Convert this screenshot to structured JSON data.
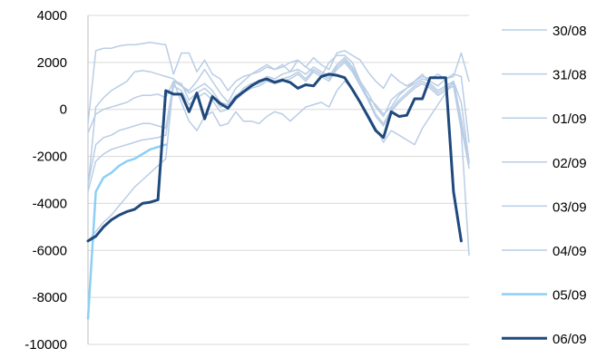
{
  "chart_data": {
    "type": "line",
    "title": "",
    "xlabel": "",
    "ylabel": "",
    "ylim": [
      -10000,
      4000
    ],
    "yticks": [
      4000,
      2000,
      0,
      -2000,
      -4000,
      -6000,
      -8000,
      -10000
    ],
    "grid": "horizontal",
    "legend_position": "right",
    "x": [
      1,
      2,
      3,
      4,
      5,
      6,
      7,
      8,
      9,
      10,
      11,
      12,
      13,
      14,
      15,
      16,
      17,
      18,
      19,
      20,
      21,
      22,
      23,
      24,
      25,
      26,
      27,
      28,
      29,
      30,
      31,
      32,
      33,
      34,
      35,
      36,
      37,
      38,
      39,
      40,
      41,
      42,
      43,
      44,
      45,
      46,
      47,
      48,
      49,
      50
    ],
    "series": [
      {
        "name": "30/08",
        "color": "#b9cde5",
        "width": 1.5,
        "values": [
          -600,
          2500,
          2600,
          2600,
          2700,
          2750,
          2750,
          2800,
          2850,
          2800,
          2750,
          1500,
          2400,
          2400,
          1600,
          2100,
          1500,
          1300,
          800,
          1200,
          1400,
          1500,
          1600,
          1800,
          1700,
          1900,
          1600,
          2100,
          1800,
          1600,
          1400,
          2000,
          2300,
          2300,
          2000,
          1200,
          500,
          200,
          -200,
          100,
          600,
          900,
          1100,
          1300,
          1200,
          1000,
          1300,
          1400,
          2400,
          1200
        ]
      },
      {
        "name": "31/08",
        "color": "#b9cde5",
        "width": 1.5,
        "values": [
          -3300,
          100,
          500,
          800,
          1000,
          1200,
          1600,
          1650,
          1600,
          1500,
          1400,
          1300,
          1000,
          800,
          1200,
          1700,
          1200,
          700,
          300,
          900,
          1200,
          1500,
          1700,
          1900,
          1700,
          1800,
          2000,
          2100,
          1800,
          2200,
          1900,
          1700,
          2400,
          2500,
          2300,
          2100,
          1600,
          1200,
          900,
          1500,
          1200,
          1000,
          1200,
          1400,
          1300,
          1500,
          1300,
          1500,
          1400,
          -1400
        ]
      },
      {
        "name": "01/09",
        "color": "#b9cde5",
        "width": 1.5,
        "values": [
          -1000,
          -200,
          0,
          100,
          200,
          300,
          500,
          600,
          600,
          650,
          500,
          1200,
          1000,
          700,
          900,
          1100,
          800,
          300,
          200,
          500,
          900,
          1100,
          1200,
          1400,
          1300,
          1500,
          1600,
          1700,
          1500,
          1800,
          1600,
          1400,
          1900,
          2200,
          1800,
          1200,
          700,
          100,
          -300,
          400,
          700,
          900,
          1200,
          1500,
          1100,
          800,
          1000,
          1200,
          -400,
          -2300
        ]
      },
      {
        "name": "02/09",
        "color": "#b9cde5",
        "width": 1.5,
        "values": [
          -3200,
          -1500,
          -1200,
          -1100,
          -900,
          -800,
          -700,
          -600,
          -600,
          -700,
          -800,
          1200,
          1100,
          400,
          700,
          900,
          600,
          100,
          200,
          600,
          800,
          1000,
          1100,
          1300,
          1200,
          1300,
          1400,
          1600,
          1300,
          1700,
          1500,
          1300,
          1800,
          2100,
          1700,
          1100,
          500,
          -200,
          -600,
          0,
          400,
          700,
          1000,
          1200,
          1000,
          700,
          900,
          1100,
          -700,
          -2500
        ]
      },
      {
        "name": "03/09",
        "color": "#b9cde5",
        "width": 1.5,
        "values": [
          -3500,
          -2200,
          -1900,
          -1700,
          -1600,
          -1500,
          -1400,
          -1300,
          -1250,
          -1200,
          -1100,
          1000,
          800,
          200,
          500,
          700,
          400,
          -100,
          0,
          400,
          700,
          900,
          1000,
          1200,
          1100,
          1200,
          1300,
          1500,
          1200,
          1600,
          1400,
          1200,
          1700,
          2000,
          1600,
          1000,
          400,
          -300,
          -700,
          -100,
          300,
          600,
          900,
          1100,
          900,
          600,
          800,
          1000,
          -900,
          -6200
        ]
      },
      {
        "name": "04/09",
        "color": "#b9cde5",
        "width": 1.5,
        "values": [
          -5600,
          -5200,
          -4800,
          -4500,
          -4100,
          -3700,
          -3300,
          -3000,
          -2700,
          -2400,
          -2100,
          1200,
          300,
          -500,
          -900,
          -300,
          -100,
          -700,
          -600,
          -100,
          -500,
          -500,
          -600,
          -300,
          -100,
          -200,
          -500,
          -200,
          100,
          200,
          300,
          100,
          800,
          1200,
          900,
          300,
          -200,
          -800,
          -1400,
          -900,
          -1100,
          -1300,
          -1500,
          -800,
          -300,
          200,
          700,
          1200,
          300,
          -2200
        ]
      },
      {
        "name": "05/09",
        "color": "#8ccff5",
        "width": 2.5,
        "values": [
          -8900,
          -3500,
          -2900,
          -2700,
          -2400,
          -2200,
          -2100,
          -1900,
          -1700,
          -1600,
          -1500,
          null,
          null,
          null,
          null,
          null,
          null,
          null,
          null,
          null,
          null,
          null,
          null,
          null,
          null,
          null,
          null,
          null,
          null,
          null,
          null,
          null,
          null,
          null,
          null,
          null,
          null,
          null,
          null,
          null,
          null,
          null,
          null,
          null,
          null,
          null,
          null,
          null,
          null,
          null
        ]
      },
      {
        "name": "06/09",
        "color": "#1f497d",
        "width": 3,
        "values": [
          -5600,
          -5400,
          -5000,
          -4700,
          -4500,
          -4350,
          -4250,
          -4000,
          -3950,
          -3850,
          800,
          650,
          650,
          -100,
          700,
          -400,
          550,
          250,
          50,
          500,
          750,
          1000,
          1200,
          1300,
          1150,
          1250,
          1150,
          900,
          1050,
          1000,
          1400,
          1500,
          1450,
          1350,
          850,
          300,
          -300,
          -900,
          -1200,
          -100,
          -300,
          -250,
          450,
          450,
          1350,
          1350,
          1350,
          -3500,
          -5600,
          null
        ]
      }
    ]
  }
}
